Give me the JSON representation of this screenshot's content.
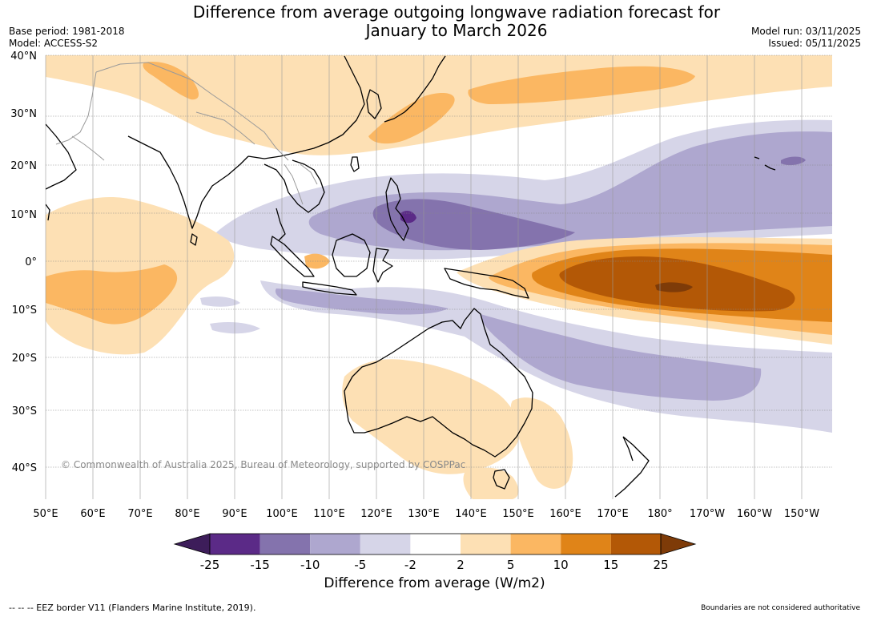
{
  "title": {
    "line1": "Difference from average outgoing longwave radiation forecast for",
    "line2": "January to March 2026"
  },
  "meta_left": {
    "base_period": "Base period: 1981-2018",
    "model": "Model: ACCESS-S2"
  },
  "meta_right": {
    "model_run": "Model run: 03/11/2025",
    "issued": "Issued: 05/11/2025"
  },
  "lat_labels": [
    "40°N",
    "30°N",
    "20°N",
    "10°N",
    "0°",
    "10°S",
    "20°S",
    "30°S",
    "40°S"
  ],
  "lon_labels": [
    "50°E",
    "60°E",
    "70°E",
    "80°E",
    "90°E",
    "100°E",
    "110°E",
    "120°E",
    "130°E",
    "140°E",
    "150°E",
    "160°E",
    "170°E",
    "180°",
    "170°W",
    "160°W",
    "150°W"
  ],
  "copyright": "© Commonwealth of Australia 2025, Bureau of Meteorology, supported by COSPPac",
  "colorbar": {
    "ticks": [
      "-25",
      "-15",
      "-10",
      "-5",
      "-2",
      "2",
      "5",
      "10",
      "15",
      "25"
    ],
    "colors": [
      "#3d1d5a",
      "#5b2a87",
      "#8473ad",
      "#aea7cf",
      "#d6d5e8",
      "#ffffff",
      "#fde0b4",
      "#fbb762",
      "#e08418",
      "#b35806",
      "#7e3b08"
    ],
    "label": "Difference from average (W/m2)"
  },
  "footer": {
    "eez_note": "--  --  -- EEZ border V11 (Flanders Marine Institute, 2019).",
    "boundary_note": "Boundaries are not considered authoritative"
  },
  "legend_colors": {
    "purple_darkest": "#5b2a87",
    "purple_dark": "#8473ad",
    "purple_mid": "#aea7cf",
    "purple_light": "#d6d5e8",
    "orange_light": "#fde0b4",
    "orange_mid": "#fbb762",
    "orange_dark": "#e08418",
    "brown": "#b35806"
  }
}
